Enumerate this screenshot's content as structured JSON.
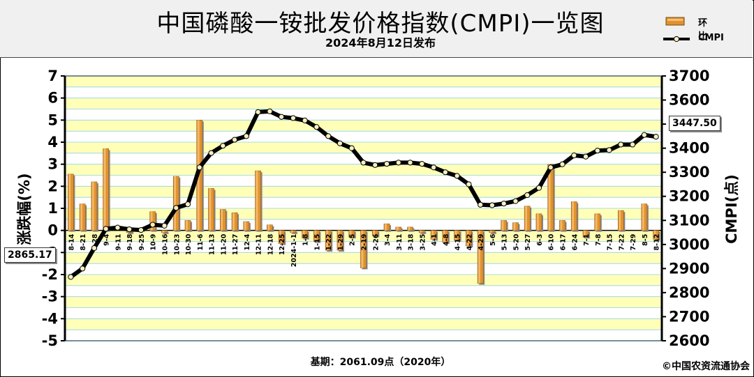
{
  "title": "中国磷酸一铵批发价格指数(CMPI)一览图",
  "subtitle": "2024年8月12日发布",
  "footer": {
    "base": "基期：2061.09点（2020年）",
    "copyright": "©中国农资流通协会"
  },
  "callouts": {
    "start_value": "2865.17",
    "end_value": "3447.50"
  },
  "colors": {
    "bar_fill": "#e2922c",
    "line": "#000000",
    "marker": "#f5efc0",
    "band": "#ffffb8"
  },
  "chart_data": {
    "type": "bar+line",
    "categories": [
      "8-14",
      "8-21",
      "8-28",
      "9-4",
      "9-11",
      "9-18",
      "9-25",
      "10-9",
      "10-16",
      "10-23",
      "10-30",
      "11-6",
      "11-13",
      "11-20",
      "11-27",
      "12-4",
      "12-11",
      "12-18",
      "12-25",
      "2024-1-1",
      "1-8",
      "1-15",
      "1-22",
      "1-29",
      "2-5",
      "2-19",
      "2-26",
      "3-4",
      "3-11",
      "3-18",
      "3-25",
      "4-1",
      "4-8",
      "4-15",
      "4-22",
      "4-29",
      "5-6",
      "5-13",
      "5-20",
      "5-27",
      "6-3",
      "6-10",
      "6-17",
      "6-24",
      "7-1",
      "7-8",
      "7-15",
      "7-22",
      "7-29",
      "8-5",
      "8-12"
    ],
    "series": [
      {
        "name": "环比",
        "axis": "left",
        "type": "bar",
        "values": [
          2.55,
          1.2,
          2.2,
          3.7,
          0.0,
          -0.1,
          0.05,
          0.85,
          -0.1,
          2.45,
          0.45,
          5.0,
          1.9,
          0.95,
          0.8,
          0.4,
          2.7,
          0.25,
          -0.6,
          -0.1,
          -0.35,
          -0.5,
          -0.9,
          -0.9,
          -0.3,
          -1.7,
          -0.25,
          0.3,
          0.15,
          0.15,
          -0.1,
          -0.4,
          -0.55,
          -0.45,
          -0.7,
          -2.4,
          -0.1,
          0.45,
          0.35,
          1.1,
          0.75,
          3.0,
          0.45,
          1.3,
          -0.3,
          0.75,
          0.0,
          0.9,
          0.0,
          1.2,
          -0.4
        ]
      },
      {
        "name": "CMPI",
        "axis": "right",
        "type": "line",
        "values": [
          2865.17,
          2900,
          2985,
          3065,
          3070,
          3063,
          3060,
          3082,
          3078,
          3152,
          3167,
          3320,
          3380,
          3410,
          3435,
          3450,
          3550,
          3553,
          3530,
          3525,
          3515,
          3488,
          3450,
          3420,
          3400,
          3340,
          3330,
          3335,
          3340,
          3340,
          3335,
          3320,
          3300,
          3285,
          3250,
          3165,
          3163,
          3170,
          3180,
          3205,
          3235,
          3320,
          3333,
          3370,
          3365,
          3390,
          3392,
          3415,
          3415,
          3455,
          3447.5
        ]
      }
    ],
    "y_left": {
      "label": "涨跌幅(%)",
      "min": -5,
      "max": 7,
      "ticks": [
        "7",
        "6",
        "5",
        "4",
        "3",
        "2",
        "1",
        "0",
        "-1",
        "-2",
        "-3",
        "-4",
        "-5"
      ]
    },
    "y_right": {
      "label": "CMPI(点)",
      "min": 2600,
      "max": 3700,
      "ticks": [
        "3700",
        "3600",
        "3500",
        "3400",
        "3300",
        "3200",
        "3100",
        "3000",
        "2900",
        "2800",
        "2700",
        "2600"
      ]
    },
    "legend": {
      "placement": "top-right",
      "entries": [
        "环比",
        "CMPI"
      ]
    },
    "grid": true
  }
}
